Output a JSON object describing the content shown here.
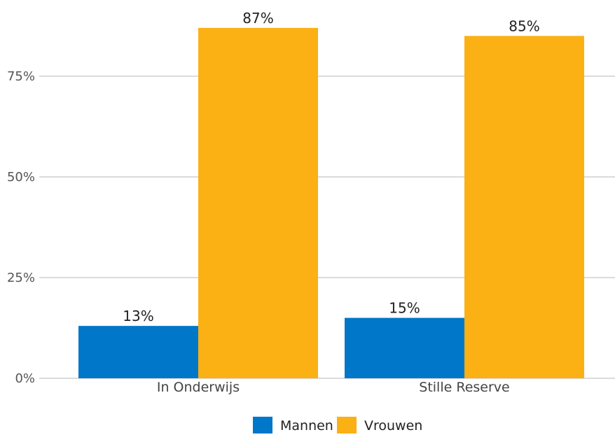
{
  "chart_data": {
    "type": "bar",
    "categories": [
      "In Onderwijs",
      "Stille Reserve"
    ],
    "series": [
      {
        "name": "Mannen",
        "values": [
          13,
          15
        ],
        "labels": [
          "13%",
          "15%"
        ],
        "color": "#0077c8"
      },
      {
        "name": "Vrouwen",
        "values": [
          87,
          85
        ],
        "labels": [
          "87%",
          "85%"
        ],
        "color": "#fbb014"
      }
    ],
    "yticks": [
      0,
      25,
      50,
      75
    ],
    "ytick_labels": [
      "0%",
      "25%",
      "50%",
      "75%"
    ],
    "ylim": [
      0,
      90
    ],
    "grid": true,
    "legend_position": "bottom"
  }
}
